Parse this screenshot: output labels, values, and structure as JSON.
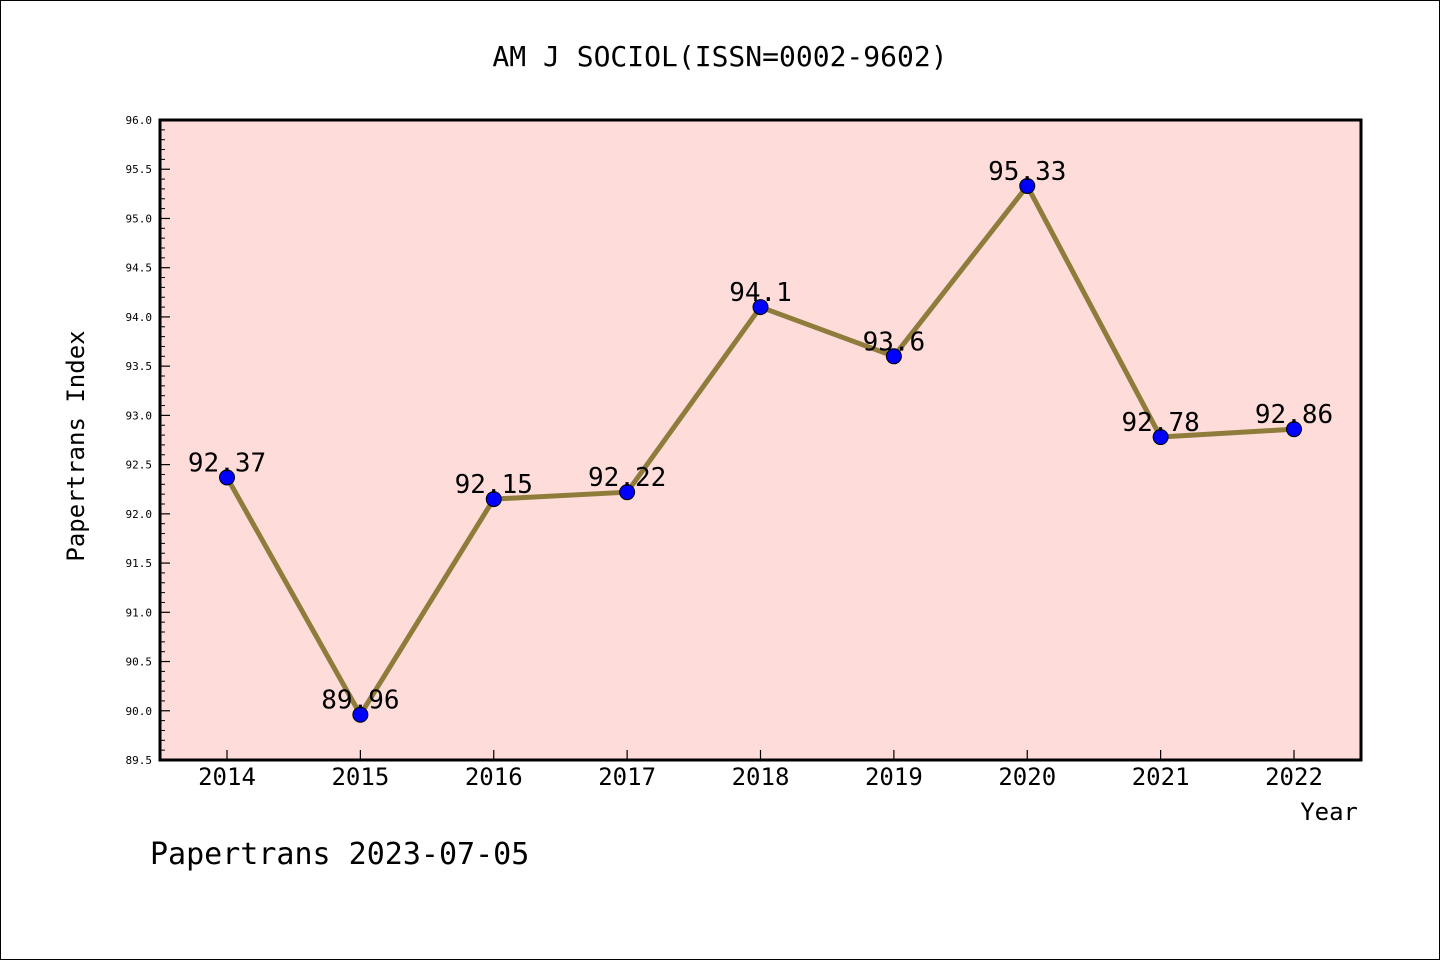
{
  "chart_data": {
    "type": "line",
    "title": "AM J SOCIOL(ISSN=0002-9602)",
    "xlabel": "Year",
    "ylabel": "Papertrans Index",
    "categories": [
      "2014",
      "2015",
      "2016",
      "2017",
      "2018",
      "2019",
      "2020",
      "2021",
      "2022"
    ],
    "series": [
      {
        "values": [
          92.37,
          89.96,
          92.15,
          92.22,
          94.1,
          93.6,
          95.33,
          92.78,
          92.86
        ],
        "labels": [
          "92.37",
          "89.96",
          "92.15",
          "92.22",
          "94.1",
          "93.6",
          "95.33",
          "92.78",
          "92.86"
        ]
      }
    ],
    "ylim": [
      89.5,
      96.0
    ],
    "y_ticks": [
      "89.5",
      "90.0",
      "90.5",
      "91.0",
      "91.5",
      "92.0",
      "92.5",
      "93.0",
      "93.5",
      "94.0",
      "94.5",
      "95.0",
      "95.5",
      "96.0"
    ],
    "grid": false,
    "colors": {
      "plot_background": "#fddcda",
      "line": "#8f7c3b",
      "marker": "#0000ff"
    }
  },
  "footer": "Papertrans 2023-07-05"
}
